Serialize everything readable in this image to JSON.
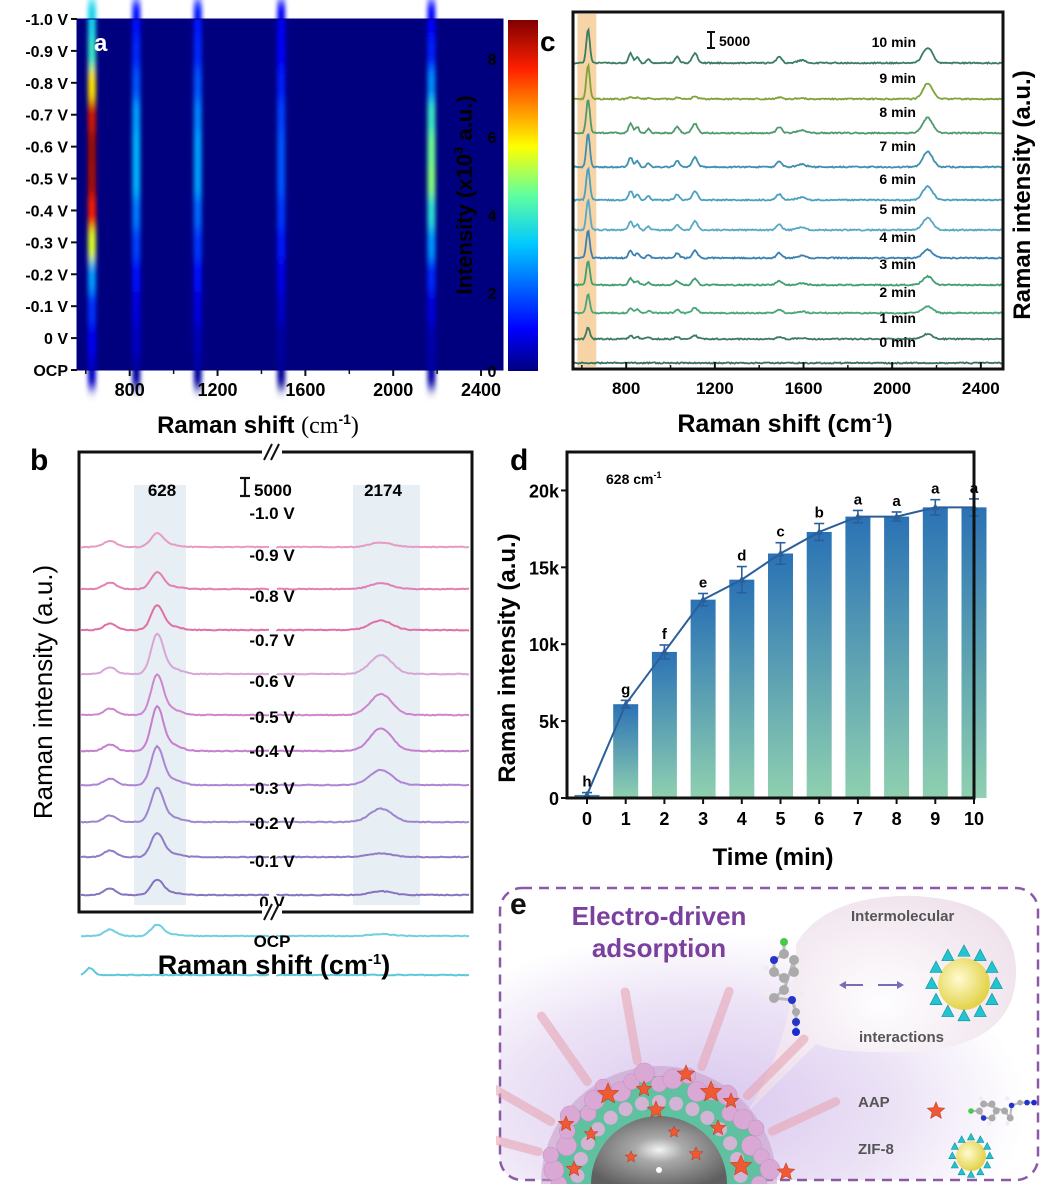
{
  "chart_data": [
    {
      "panel": "a",
      "type": "heatmap",
      "xlabel": "Raman shift (cm-1)",
      "xlabel_main": "Raman shift ",
      "xlabel_unit": "(cm",
      "xlabel_sup": "-1",
      "xlabel_close": ")",
      "xlim": [
        560,
        2500
      ],
      "xticks": [
        800,
        1200,
        1600,
        2000,
        2400
      ],
      "y_categories": [
        "OCP",
        "0 V",
        "-0.1 V",
        "-0.2 V",
        "-0.3 V",
        "-0.4 V",
        "-0.5 V",
        "-0.6 V",
        "-0.7 V",
        "-0.8 V",
        "-0.9 V",
        "-1.0 V"
      ],
      "colorbar": {
        "label": "Intensity (x10",
        "label_sup": "3",
        "label_end": " a.u.)",
        "range": [
          0,
          9
        ],
        "ticks": [
          0,
          2,
          4,
          6,
          8
        ]
      },
      "bands": [
        {
          "center": 628,
          "intensity": [
            0.6,
            1.0,
            1.6,
            2.8,
            5.5,
            7.8,
            8.6,
            8.7,
            8.2,
            6.0,
            4.0,
            3.5
          ]
        },
        {
          "center": 830,
          "intensity": [
            0.3,
            0.6,
            0.8,
            1.2,
            1.8,
            2.4,
            3.0,
            3.0,
            2.8,
            2.0,
            1.5,
            1.2
          ]
        },
        {
          "center": 1110,
          "intensity": [
            0.3,
            0.5,
            0.8,
            1.2,
            1.7,
            2.2,
            2.8,
            2.8,
            2.5,
            2.0,
            1.5,
            1.3
          ]
        },
        {
          "center": 1490,
          "intensity": [
            0.2,
            0.3,
            0.6,
            0.9,
            1.3,
            1.7,
            2.0,
            2.0,
            1.8,
            1.4,
            1.1,
            1.0
          ]
        },
        {
          "center": 2174,
          "intensity": [
            0.3,
            0.4,
            0.8,
            1.5,
            2.7,
            3.8,
            4.8,
            4.6,
            4.0,
            2.6,
            1.4,
            1.1
          ]
        }
      ],
      "annotation": "a"
    },
    {
      "panel": "b",
      "type": "line",
      "xlabel": "Raman shift (cm-1)",
      "xlabel_main": "Raman shift (cm",
      "xlabel_sup": "-1",
      "xlabel_close": ")",
      "ylabel": "Raman intensity (a.u.)",
      "axis_break": "//",
      "peak_labels": [
        "628",
        "2174"
      ],
      "scale_bar": "5000",
      "series": [
        {
          "name": "-1.0 V",
          "color": "#e79ac4",
          "peak628": 0.35,
          "peak2174": 0.12
        },
        {
          "name": "-0.9 V",
          "color": "#e27fb3",
          "peak628": 0.42,
          "peak2174": 0.15
        },
        {
          "name": "-0.8 V",
          "color": "#e070a8",
          "peak628": 0.62,
          "peak2174": 0.25
        },
        {
          "name": "-0.7 V",
          "color": "#d8a6d6",
          "peak628": 1.0,
          "peak2174": 0.5
        },
        {
          "name": "-0.6 V",
          "color": "#cf85cf",
          "peak628": 1.0,
          "peak2174": 0.55
        },
        {
          "name": "-0.5 V",
          "color": "#c67fd0",
          "peak628": 1.1,
          "peak2174": 0.6
        },
        {
          "name": "-0.4 V",
          "color": "#ae85d6",
          "peak628": 0.95,
          "peak2174": 0.4
        },
        {
          "name": "-0.3 V",
          "color": "#9e86cf",
          "peak628": 0.85,
          "peak2174": 0.35
        },
        {
          "name": "-0.2 V",
          "color": "#8f7cc4",
          "peak628": 0.6,
          "peak2174": 0.1
        },
        {
          "name": "-0.1 V",
          "color": "#8673c0",
          "peak628": 0.38,
          "peak2174": 0.1
        },
        {
          "name": "0 V",
          "color": "#6fd0e2",
          "peak628": 0.28,
          "peak2174": 0.05
        },
        {
          "name": "OCP",
          "color": "#5dc7dc",
          "peak628": 0.0,
          "peak2174": 0.0
        }
      ],
      "annotation": "b"
    },
    {
      "panel": "c",
      "type": "line",
      "xlabel": "Raman shift (cm-1)",
      "xlabel_main": "Raman shift (cm",
      "xlabel_sup": "-1",
      "xlabel_close": ")",
      "ylabel": "Raman intensity (a.u.)",
      "xlim": [
        560,
        2500
      ],
      "xticks": [
        800,
        1200,
        1600,
        2000,
        2400
      ],
      "highlight_range": [
        580,
        665
      ],
      "scale_bar": "5000",
      "series": [
        {
          "name": "10 min",
          "color": "#3b7d62",
          "scale": 1.0,
          "p2174": 0.45
        },
        {
          "name": "9 min",
          "color": "#7fa33a",
          "scale": 1.0,
          "p2174": 0.45,
          "weak_mid": true
        },
        {
          "name": "8 min",
          "color": "#4f9a6b",
          "scale": 1.0,
          "p2174": 0.45
        },
        {
          "name": "7 min",
          "color": "#3f8fb1",
          "scale": 1.0,
          "p2174": 0.45
        },
        {
          "name": "6 min",
          "color": "#4aa0c0",
          "scale": 0.95,
          "p2174": 0.4
        },
        {
          "name": "5 min",
          "color": "#58a9c7",
          "scale": 0.9,
          "p2174": 0.35
        },
        {
          "name": "4 min",
          "color": "#3a80b0",
          "scale": 0.8,
          "p2174": 0.25
        },
        {
          "name": "3 min",
          "color": "#3f9f71",
          "scale": 0.7,
          "p2174": 0.25
        },
        {
          "name": "2 min",
          "color": "#4aa577",
          "scale": 0.55,
          "p2174": 0.2
        },
        {
          "name": "1 min",
          "color": "#3e7a60",
          "scale": 0.35,
          "p2174": 0.15
        },
        {
          "name": "0 min",
          "color": "#3a7060",
          "scale": 0.0,
          "p2174": 0.0
        }
      ],
      "annotation": "c"
    },
    {
      "panel": "d",
      "type": "bar",
      "title_annotation": "628 cm",
      "title_sup": "-1",
      "xlabel": "Time (min)",
      "ylabel": "Raman intensity (a.u.)",
      "categories": [
        "0",
        "1",
        "2",
        "3",
        "4",
        "5",
        "6",
        "7",
        "8",
        "9",
        "10"
      ],
      "values": [
        200,
        6100,
        9500,
        12900,
        14200,
        15900,
        17300,
        18300,
        18300,
        18900,
        18900
      ],
      "errors": [
        150,
        250,
        450,
        400,
        850,
        700,
        550,
        400,
        300,
        500,
        550
      ],
      "letters": [
        "h",
        "g",
        "f",
        "e",
        "d",
        "c",
        "b",
        "a",
        "a",
        "a",
        "a"
      ],
      "ylim": [
        0,
        22500
      ],
      "yticks": [
        0,
        5000,
        10000,
        15000,
        20000
      ],
      "ytick_labels": [
        "0",
        "5k",
        "10k",
        "15k",
        "20k"
      ],
      "bar_gradient": [
        "#2a72b5",
        "#8fd0b0"
      ],
      "line_color": "#2b5f9a",
      "annotation": "d"
    }
  ],
  "panel_e": {
    "label": "e",
    "title_line1": "Electro-driven",
    "title_line2": "adsorption",
    "bubble_top": "Intermolecular",
    "bubble_bottom": "interactions",
    "legend_aap": "AAP",
    "legend_zif": "ZIF-8",
    "title_color": "#7b3f9e",
    "border_color": "#8a5aa8"
  }
}
